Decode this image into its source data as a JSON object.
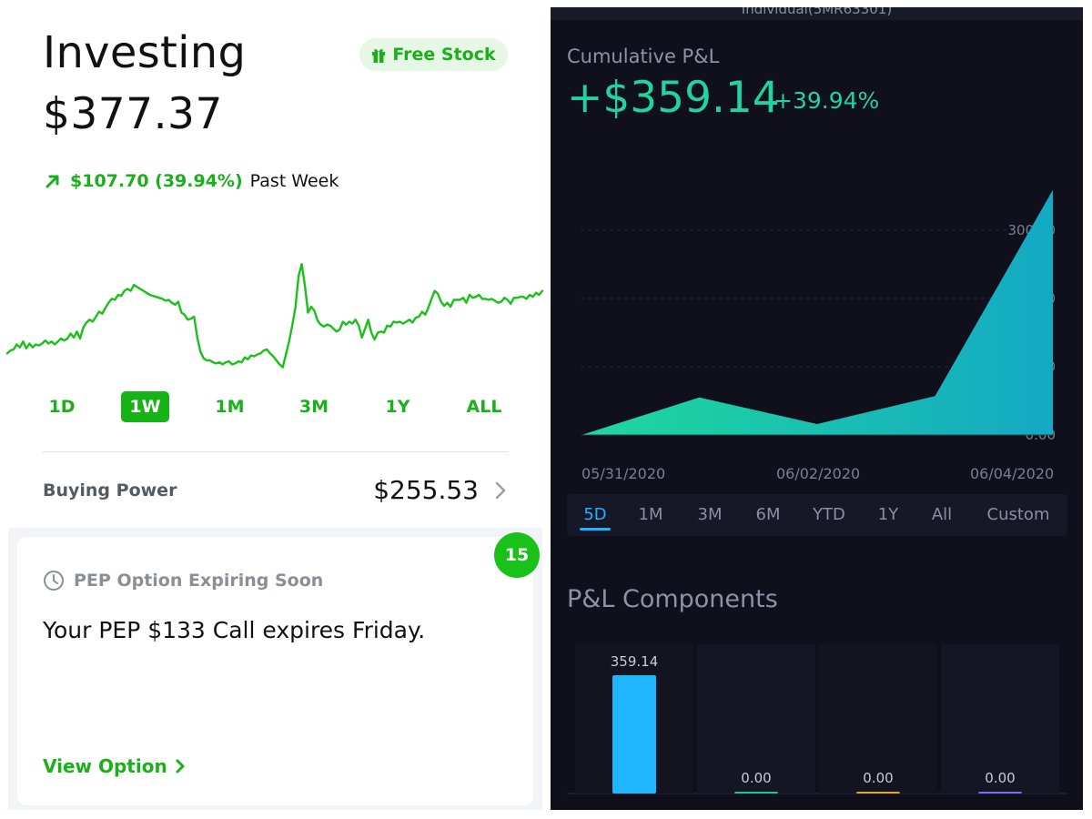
{
  "left": {
    "title": "Investing",
    "balance": "$377.37",
    "free_stock_label": "Free Stock",
    "change": {
      "amount": "$107.70 (39.94%)",
      "period": "Past Week"
    },
    "ranges": [
      "1D",
      "1W",
      "1M",
      "3M",
      "1Y",
      "ALL"
    ],
    "active_range": "1W",
    "buying_power": {
      "label": "Buying Power",
      "value": "$255.53"
    },
    "notification": {
      "badge": "15",
      "heading": "PEP Option Expiring Soon",
      "body": "Your PEP $133 Call expires Friday.",
      "link": "View Option"
    }
  },
  "right": {
    "account": "Individual(5MR63301)",
    "cumulative_label": "Cumulative P&L",
    "cumulative_value": "+$359.14",
    "cumulative_pct": "+39.94%",
    "x_labels": [
      "05/31/2020",
      "06/02/2020",
      "06/04/2020"
    ],
    "tabs": [
      "5D",
      "1M",
      "3M",
      "6M",
      "YTD",
      "1Y",
      "All",
      "Custom"
    ],
    "active_tab": "5D",
    "components_title": "P&L Components"
  },
  "chart_data": [
    {
      "type": "line",
      "y": [
        58,
        61,
        62,
        67,
        64,
        70,
        63,
        68,
        64,
        67,
        66,
        68,
        71,
        68,
        70,
        67,
        70,
        73,
        71,
        73,
        78,
        74,
        80,
        73,
        84,
        89,
        92,
        90,
        95,
        100,
        98,
        104,
        109,
        113,
        112,
        117,
        116,
        121,
        123,
        121,
        127,
        125,
        123,
        121,
        119,
        117,
        116,
        115,
        114,
        113,
        111,
        112,
        109,
        107,
        110,
        99,
        97,
        92,
        93,
        95,
        74,
        60,
        53,
        51,
        51,
        49,
        48,
        49,
        47,
        49,
        50,
        47,
        48,
        50,
        49,
        54,
        52,
        56,
        55,
        57,
        58,
        61,
        62,
        58,
        55,
        51,
        47,
        44,
        57,
        70,
        86,
        104,
        136,
        148,
        126,
        99,
        105,
        101,
        91,
        87,
        85,
        87,
        86,
        83,
        80,
        82,
        90,
        87,
        90,
        88,
        92,
        86,
        74,
        83,
        92,
        79,
        72,
        79,
        80,
        79,
        86,
        85,
        90,
        89,
        90,
        88,
        90,
        92,
        89,
        94,
        95,
        100,
        97,
        104,
        113,
        121,
        118,
        110,
        106,
        109,
        105,
        112,
        112,
        112,
        114,
        109,
        117,
        114,
        115,
        117,
        113,
        113,
        112,
        113,
        111,
        109,
        110,
        114,
        112,
        108,
        114,
        114,
        115,
        115,
        113,
        117,
        115,
        119,
        117,
        121
      ],
      "ylim": [
        40,
        150
      ],
      "color": "#19c119"
    },
    {
      "type": "area",
      "x": [
        "05/31/2020",
        "06/01/2020",
        "06/02/2020",
        "06/03/2020",
        "06/04/2020"
      ],
      "y": [
        0,
        55,
        16,
        57,
        359.14
      ],
      "y_ticks": [
        "0.00",
        "100.00",
        "200.00",
        "300.00"
      ],
      "ylim": [
        0,
        360
      ],
      "grid": true
    },
    {
      "type": "bar",
      "values": [
        359.14,
        0,
        0,
        0
      ],
      "labels": [
        "359.14",
        "0.00",
        "0.00",
        "0.00"
      ],
      "colors": [
        "#1fb6ff",
        "#22c28a",
        "#e3a72f",
        "#7a6cf0"
      ]
    }
  ]
}
